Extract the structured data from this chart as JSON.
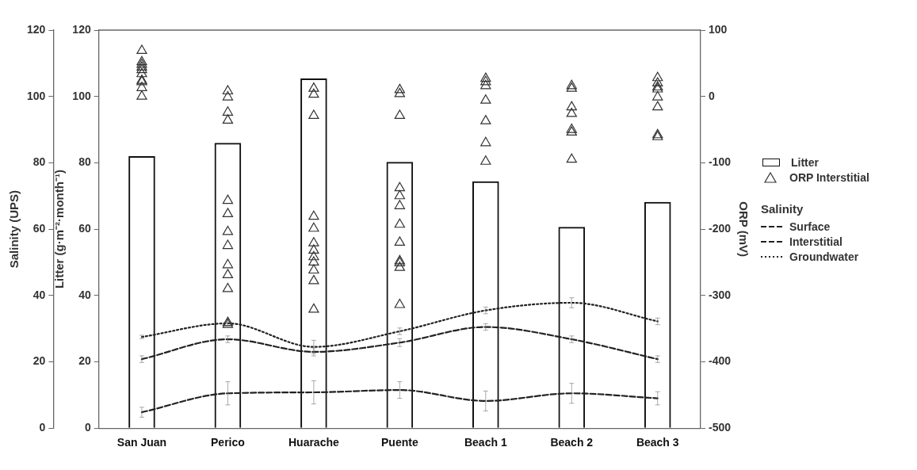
{
  "chart_data": {
    "type": "bar",
    "ylabel": "Litter (g·m⁻²·month⁻¹)",
    "y2label": "Salinity (UPS)",
    "y3label": "ORP (mV)",
    "legend_title": "Salinity",
    "legend": "right",
    "grid": false,
    "categories": [
      "San Juan",
      "Perico",
      "Huarache",
      "Puente",
      "Beach 1",
      "Beach 2",
      "Beach 3"
    ],
    "ylim": [
      0,
      120
    ],
    "yticks": [
      0,
      20,
      40,
      60,
      80,
      100,
      120
    ],
    "y2lim": [
      0,
      120
    ],
    "y2ticks": [
      0,
      20,
      40,
      60,
      80,
      100,
      120
    ],
    "y3lim": [
      -500,
      100
    ],
    "y3ticks": [
      -500,
      -400,
      -300,
      -200,
      -100,
      0,
      100
    ],
    "series": [
      {
        "name": "Litter",
        "color": "#111111",
        "values": [
          82,
          86,
          105.4,
          80.3,
          74.4,
          60.7,
          68.2
        ]
      },
      {
        "name": "ORP Interstitial",
        "type": "scatter",
        "axis": "y3",
        "marker": "triangle",
        "color": "#333333",
        "x": [
          "San Juan",
          "San Juan",
          "San Juan",
          "San Juan",
          "San Juan",
          "San Juan",
          "San Juan",
          "San Juan",
          "San Juan",
          "San Juan",
          "Perico",
          "Perico",
          "Perico",
          "Perico",
          "Perico",
          "Perico",
          "Perico",
          "Perico",
          "Perico",
          "Perico",
          "Perico",
          "Perico",
          "Perico",
          "Huarache",
          "Huarache",
          "Huarache",
          "Huarache",
          "Huarache",
          "Huarache",
          "Huarache",
          "Huarache",
          "Huarache",
          "Huarache",
          "Huarache",
          "Huarache",
          "Puente",
          "Puente",
          "Puente",
          "Puente",
          "Puente",
          "Puente",
          "Puente",
          "Puente",
          "Puente",
          "Puente",
          "Puente",
          "Puente",
          "Beach 1",
          "Beach 1",
          "Beach 1",
          "Beach 1",
          "Beach 1",
          "Beach 1",
          "Beach 1",
          "Beach 2",
          "Beach 2",
          "Beach 2",
          "Beach 2",
          "Beach 2",
          "Beach 2",
          "Beach 2",
          "Beach 3",
          "Beach 3",
          "Beach 3",
          "Beach 3",
          "Beach 3",
          "Beach 3",
          "Beach 3",
          "Beach 3"
        ],
        "values": [
          69,
          52,
          48,
          44,
          40,
          34,
          24,
          22,
          13,
          0,
          8,
          -1,
          -24,
          -36,
          -157,
          -177,
          -204,
          -225,
          -254,
          -269,
          -290,
          -341,
          -344,
          12,
          3,
          -29,
          -181,
          -199,
          -221,
          -232,
          -242,
          -250,
          -262,
          -278,
          -321,
          10,
          4,
          -29,
          -138,
          -150,
          -165,
          -193,
          -220,
          -248,
          -251,
          -258,
          -314,
          27,
          22,
          16,
          -6,
          -37,
          -70,
          -98,
          16,
          12,
          -16,
          -26,
          -50,
          -54,
          -95,
          28,
          20,
          14,
          11,
          -1,
          -16,
          -58,
          -61
        ]
      },
      {
        "name": "Surface",
        "type": "line",
        "axis": "y2",
        "line_style": "dashed",
        "color": "#222222",
        "values": [
          4.8,
          10.5,
          10.8,
          11.5,
          8.2,
          10.5,
          9
        ],
        "errors": [
          1.5,
          3.5,
          3.5,
          2.5,
          3,
          3,
          2
        ]
      },
      {
        "name": "Interstitial",
        "type": "line",
        "axis": "y2",
        "line_style": "dashed",
        "color": "#222222",
        "values": [
          20.8,
          26.8,
          23,
          25.8,
          30.5,
          26.8,
          20.8
        ],
        "errors": [
          1,
          1,
          1.2,
          1.2,
          1,
          1,
          1
        ]
      },
      {
        "name": "Groundwater",
        "type": "line",
        "axis": "y2",
        "line_style": "dotted",
        "color": "#222222",
        "values": [
          27.5,
          31.6,
          24.5,
          29.2,
          35.5,
          37.8,
          32.2
        ],
        "errors": [
          0.5,
          0.8,
          2,
          1,
          1,
          1.5,
          1
        ]
      }
    ]
  }
}
